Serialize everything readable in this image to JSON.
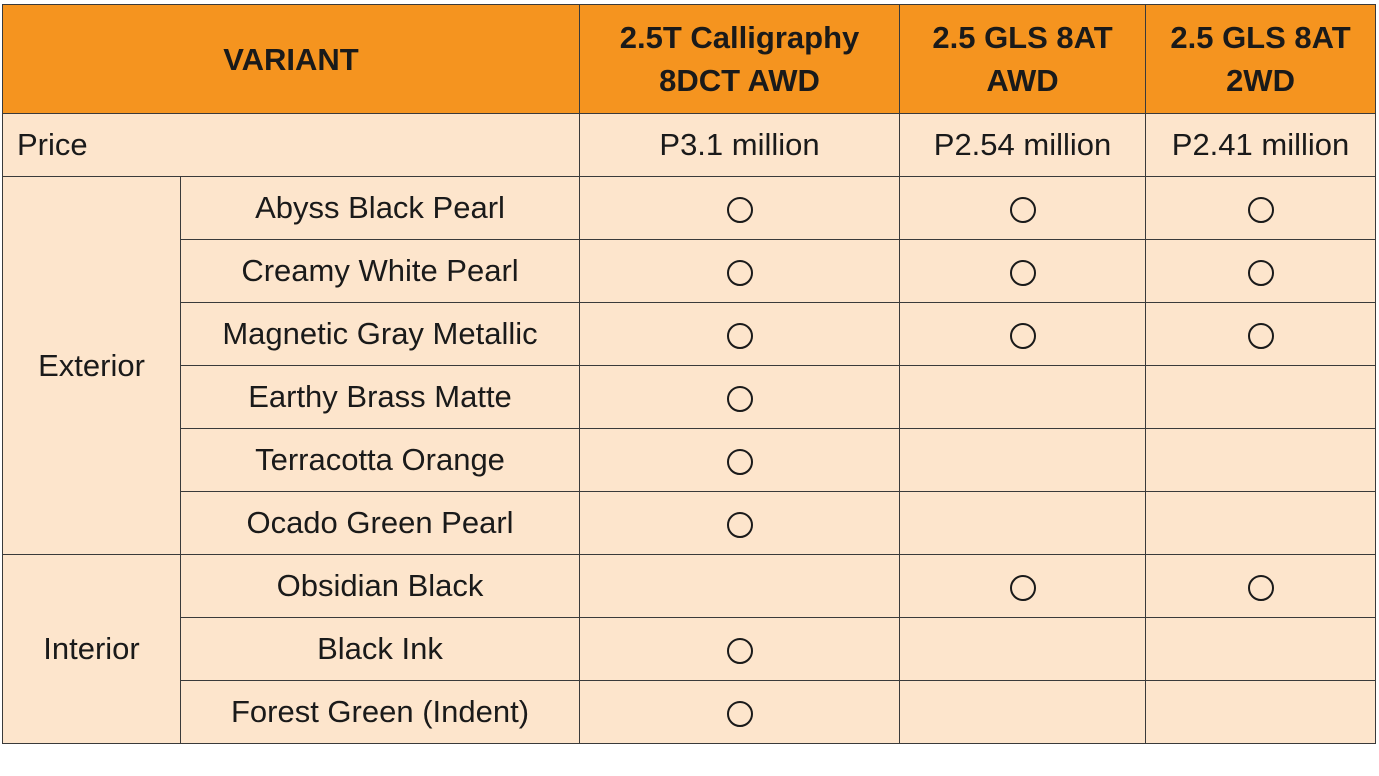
{
  "header": {
    "variant_label": "VARIANT",
    "columns": [
      {
        "line1": "2.5T Calligraphy",
        "line2": "8DCT AWD"
      },
      {
        "line1": "2.5 GLS 8AT",
        "line2": "AWD"
      },
      {
        "line1": "2.5 GLS 8AT",
        "line2": "2WD"
      }
    ]
  },
  "price": {
    "label": "Price",
    "values": [
      "P3.1 million",
      "P2.54 million",
      "P2.41 million"
    ]
  },
  "mark_symbol": "circle",
  "colors": {
    "header_bg": "#f5941f",
    "cell_bg": "#fde5cc",
    "border": "#3a3a3a"
  },
  "exterior": {
    "label": "Exterior",
    "rows": [
      {
        "name": "Abyss Black Pearl",
        "avail": [
          true,
          true,
          true
        ]
      },
      {
        "name": "Creamy White Pearl",
        "avail": [
          true,
          true,
          true
        ]
      },
      {
        "name": "Magnetic Gray Metallic",
        "avail": [
          true,
          true,
          true
        ]
      },
      {
        "name": "Earthy Brass Matte",
        "avail": [
          true,
          false,
          false
        ]
      },
      {
        "name": "Terracotta Orange",
        "avail": [
          true,
          false,
          false
        ]
      },
      {
        "name": "Ocado Green Pearl",
        "avail": [
          true,
          false,
          false
        ]
      }
    ]
  },
  "interior": {
    "label": "Interior",
    "rows": [
      {
        "name": "Obsidian Black",
        "avail": [
          false,
          true,
          true
        ]
      },
      {
        "name": "Black Ink",
        "avail": [
          true,
          false,
          false
        ]
      },
      {
        "name": "Forest Green (Indent)",
        "avail": [
          true,
          false,
          false
        ]
      }
    ]
  }
}
